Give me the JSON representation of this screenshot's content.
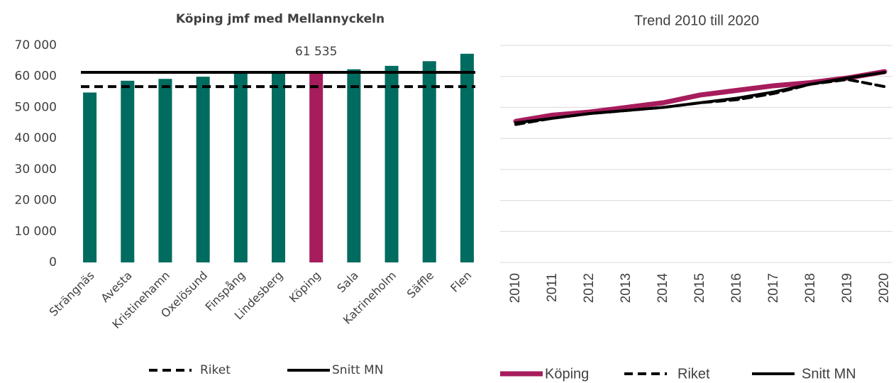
{
  "chart_data": [
    {
      "type": "bar",
      "title": "Köping jmf med Mellannyckeln",
      "categories": [
        "Strängnäs",
        "Avesta",
        "Kristinehamn",
        "Oxelösund",
        "Finspång",
        "Lindesberg",
        "Köping",
        "Sala",
        "Katrineholm",
        "Säffle",
        "Flen"
      ],
      "values": [
        54800,
        58600,
        59200,
        59900,
        61200,
        61300,
        61535,
        62300,
        63400,
        64900,
        67300
      ],
      "value_labels": [
        null,
        null,
        null,
        null,
        null,
        null,
        "61 535",
        null,
        null,
        null,
        null
      ],
      "colors": [
        "#006b5f",
        "#006b5f",
        "#006b5f",
        "#006b5f",
        "#006b5f",
        "#006b5f",
        "#a61c5c",
        "#006b5f",
        "#006b5f",
        "#006b5f",
        "#006b5f"
      ],
      "reference_lines": [
        {
          "name": "Riket",
          "value": 56700,
          "color": "#000000",
          "dashed": true
        },
        {
          "name": "Snitt MN",
          "value": 61300,
          "color": "#000000",
          "dashed": false
        }
      ],
      "ylim": [
        0,
        70000
      ],
      "yticks": [
        {
          "value": 0,
          "label": "0"
        },
        {
          "value": 10000,
          "label": "10 000"
        },
        {
          "value": 20000,
          "label": "20 000"
        },
        {
          "value": 30000,
          "label": "30 000"
        },
        {
          "value": 40000,
          "label": "40 000"
        },
        {
          "value": 50000,
          "label": "50 000"
        },
        {
          "value": 60000,
          "label": "60 000"
        },
        {
          "value": 70000,
          "label": "70 000"
        }
      ],
      "grid": false
    },
    {
      "type": "line",
      "title": "Trend 2010 till 2020",
      "categories": [
        "2010",
        "2011",
        "2012",
        "2013",
        "2014",
        "2015",
        "2016",
        "2017",
        "2018",
        "2019",
        "2020"
      ],
      "series": [
        {
          "name": "Köping",
          "color": "#a61c5c",
          "width": 7,
          "dashed": false,
          "values": [
            45500,
            47500,
            48500,
            50000,
            51500,
            54000,
            55500,
            57000,
            58000,
            59500,
            61535
          ]
        },
        {
          "name": "Riket",
          "color": "#000000",
          "width": 4,
          "dashed": true,
          "values": [
            44500,
            46500,
            48000,
            49000,
            50000,
            51500,
            52500,
            54500,
            57500,
            59000,
            56700
          ]
        },
        {
          "name": "Snitt MN",
          "color": "#000000",
          "width": 4,
          "dashed": false,
          "values": [
            45000,
            46500,
            48000,
            49000,
            50000,
            51500,
            53000,
            55000,
            57500,
            59500,
            61300
          ]
        }
      ],
      "ylim": [
        0,
        70000
      ],
      "yticks": [
        0,
        10000,
        20000,
        30000,
        40000,
        50000,
        60000,
        70000
      ],
      "grid": true,
      "show_y_tick_labels": false
    }
  ]
}
